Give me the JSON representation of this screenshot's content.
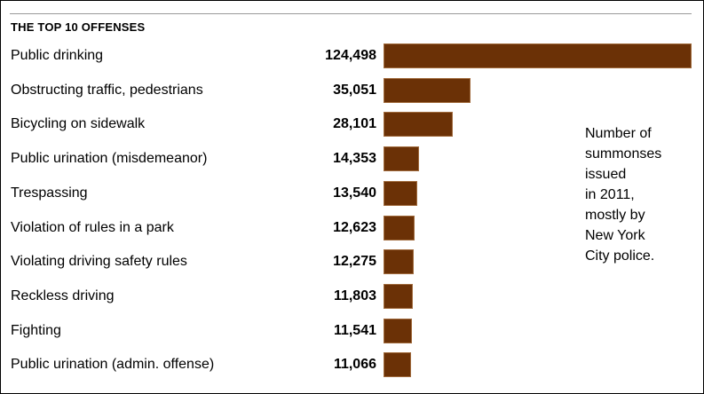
{
  "header": {
    "title": "THE TOP 10 OFFENSES"
  },
  "note": "Number of\nsummonses\nissued\nin 2011,\nmostly by\nNew York\nCity police.",
  "colors": {
    "bar": "#6b3106",
    "bar_edge": "#a06a3c",
    "rule": "#9a9a9a"
  },
  "chart_data": {
    "type": "bar",
    "orientation": "horizontal",
    "title": "THE TOP 10 OFFENSES",
    "categories": [
      "Public drinking",
      "Obstructing traffic, pedestrians",
      "Bicycling on sidewalk",
      "Public urination (misdemeanor)",
      "Trespassing",
      "Violation of rules in a park",
      "Violating driving safety rules",
      "Reckless driving",
      "Fighting",
      "Public urination (admin. offense)"
    ],
    "values": [
      124498,
      35051,
      28101,
      14353,
      13540,
      12623,
      12275,
      11803,
      11541,
      11066
    ],
    "value_labels": [
      "124,498",
      "35,051",
      "28,101",
      "14,353",
      "13,540",
      "12,623",
      "12,275",
      "11,803",
      "11,541",
      "11,066"
    ],
    "annotation": "Number of summonses issued in 2011, mostly by New York City police.",
    "grid": false,
    "legend": "none"
  }
}
